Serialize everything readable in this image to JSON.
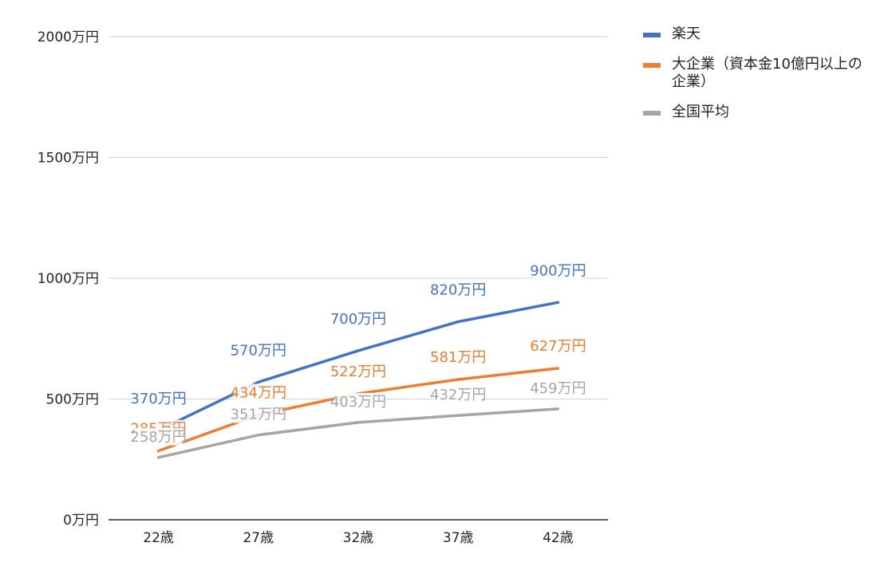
{
  "chart_data": {
    "type": "line",
    "title": "",
    "xlabel": "",
    "ylabel": "",
    "categories": [
      "22歳",
      "27歳",
      "32歳",
      "37歳",
      "42歳"
    ],
    "y_ticks": [
      "0万円",
      "500万円",
      "1000万円",
      "1500万円",
      "2000万円"
    ],
    "y_tick_values": [
      0,
      500,
      1000,
      1500,
      2000
    ],
    "ylim": [
      0,
      2000
    ],
    "grid": true,
    "legend_position": "right",
    "series": [
      {
        "name": "楽天",
        "color": "#4472C4",
        "values": [
          370,
          570,
          700,
          820,
          900
        ],
        "labels": [
          "370万円",
          "570万円",
          "700万円",
          "820万円",
          "900万円"
        ]
      },
      {
        "name": "大企業（資本金10億円以上の企業）",
        "color": "#ED7D31",
        "values": [
          285,
          434,
          522,
          581,
          627
        ],
        "labels": [
          "285万円",
          "434万円",
          "522万円",
          "581万円",
          "627万円"
        ]
      },
      {
        "name": "全国平均",
        "color": "#A5A5A5",
        "values": [
          258,
          351,
          403,
          432,
          459
        ],
        "labels": [
          "258万円",
          "351万円",
          "403万円",
          "432万円",
          "459万円"
        ]
      }
    ]
  }
}
